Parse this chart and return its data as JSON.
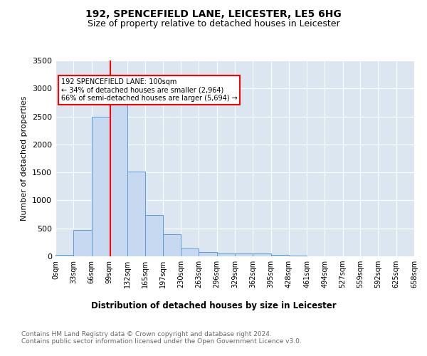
{
  "title1": "192, SPENCEFIELD LANE, LEICESTER, LE5 6HG",
  "title2": "Size of property relative to detached houses in Leicester",
  "xlabel": "Distribution of detached houses by size in Leicester",
  "ylabel": "Number of detached properties",
  "bar_color": "#c6d9f0",
  "bar_edge_color": "#5b9bd5",
  "background_color": "#dce6f1",
  "property_size": 100,
  "vline_color": "red",
  "annotation_text": "192 SPENCEFIELD LANE: 100sqm\n← 34% of detached houses are smaller (2,964)\n66% of semi-detached houses are larger (5,694) →",
  "ylim": [
    0,
    3500
  ],
  "bin_edges": [
    0,
    33,
    66,
    99,
    132,
    165,
    197,
    230,
    263,
    296,
    329,
    362,
    395,
    428,
    461,
    494,
    527,
    559,
    592,
    625,
    658
  ],
  "bar_heights": [
    25,
    470,
    2500,
    2820,
    1510,
    740,
    390,
    140,
    75,
    55,
    50,
    55,
    25,
    10,
    5,
    2,
    2,
    1,
    1,
    1
  ],
  "footer_text": "Contains HM Land Registry data © Crown copyright and database right 2024.\nContains public sector information licensed under the Open Government Licence v3.0.",
  "tick_labels": [
    "0sqm",
    "33sqm",
    "66sqm",
    "99sqm",
    "132sqm",
    "165sqm",
    "197sqm",
    "230sqm",
    "263sqm",
    "296sqm",
    "329sqm",
    "362sqm",
    "395sqm",
    "428sqm",
    "461sqm",
    "494sqm",
    "527sqm",
    "559sqm",
    "592sqm",
    "625sqm",
    "658sqm"
  ],
  "yticks": [
    0,
    500,
    1000,
    1500,
    2000,
    2500,
    3000,
    3500
  ]
}
